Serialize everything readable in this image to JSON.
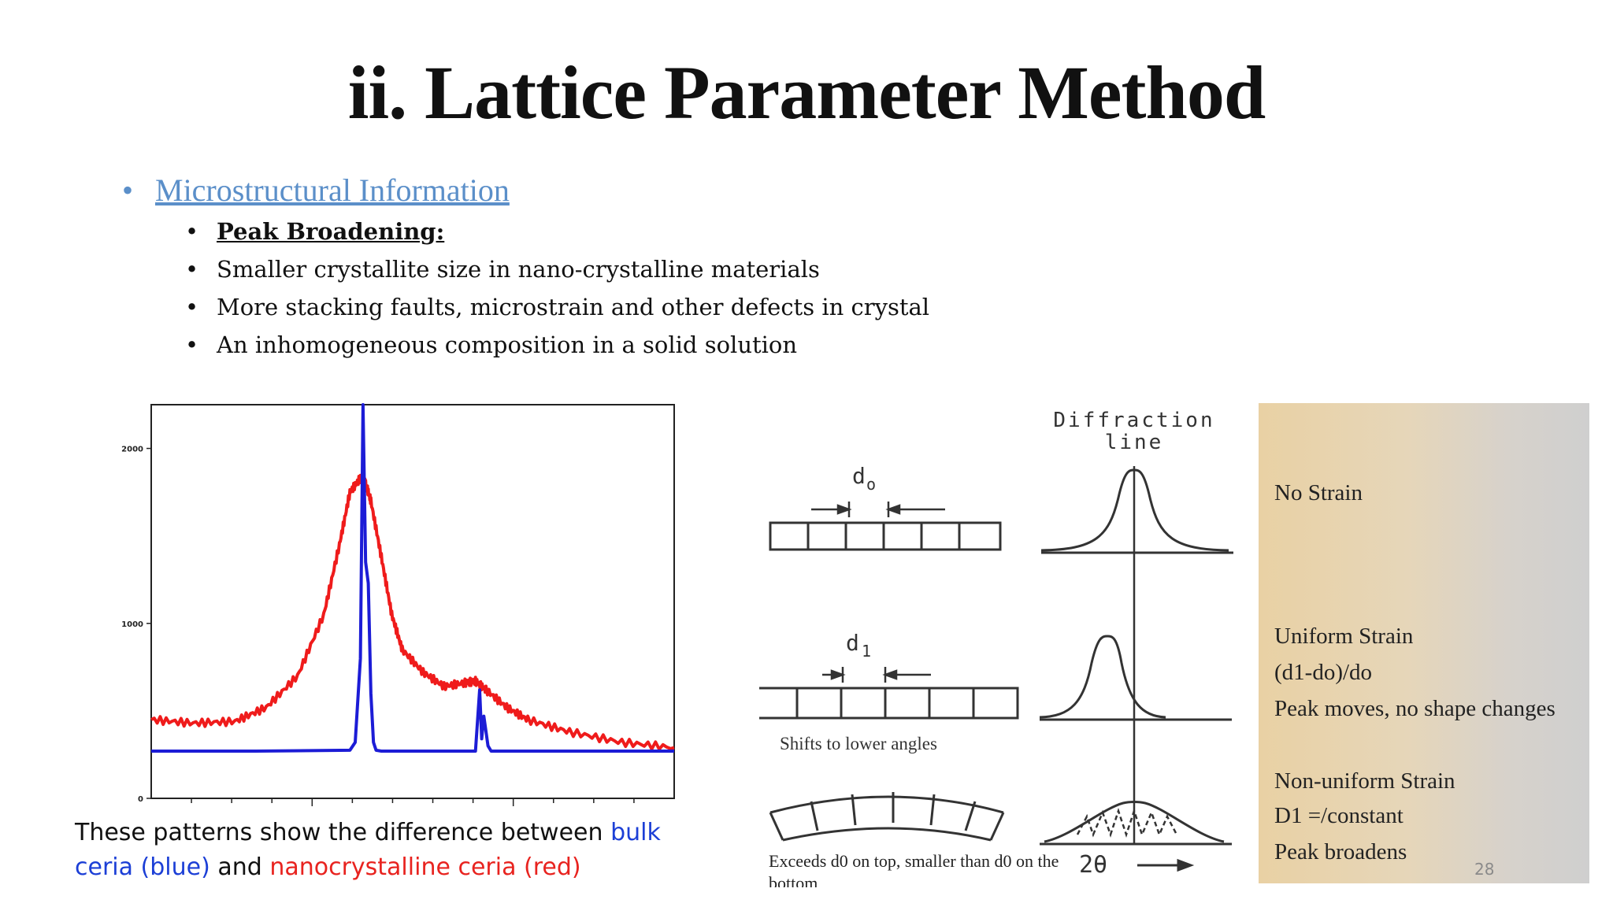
{
  "slide": {
    "title": "ii. Lattice Parameter Method",
    "number": "28"
  },
  "bullets": {
    "level1": "Microstructural Information",
    "level1_bullet": "•",
    "level2_bullet": "•",
    "heading": "Peak Broadening:",
    "items": [
      "Smaller crystallite size in nano-crystalline materials",
      "More stacking faults, microstrain and other defects in crystal",
      "An inhomogeneous composition in a solid solution"
    ]
  },
  "chart_data": {
    "type": "line",
    "title": "",
    "xlabel": "",
    "ylabel": "",
    "yticks": [
      "0",
      "1000",
      "2000"
    ],
    "ylim": [
      0,
      2250
    ],
    "xlim": [
      0,
      100
    ],
    "grid": false,
    "series": [
      {
        "color": "#1c1cd6",
        "x": [
          0,
          20,
          38,
          39,
          40,
          40.5,
          41,
          41.5,
          42,
          42.5,
          43,
          44,
          62,
          62.8,
          63.2,
          63.6,
          64.4,
          65,
          100
        ],
        "y": [
          270,
          270,
          275,
          320,
          800,
          2250,
          1350,
          1230,
          600,
          320,
          275,
          270,
          270,
          620,
          340,
          470,
          300,
          270,
          270
        ]
      },
      {
        "color": "#ef1b1b",
        "x": [
          0,
          8,
          16,
          22,
          28,
          33,
          36,
          38,
          40,
          41,
          42,
          44,
          46,
          48,
          52,
          56,
          60,
          62,
          64,
          68,
          72,
          80,
          90,
          100
        ],
        "y": [
          450,
          430,
          440,
          520,
          700,
          1050,
          1450,
          1750,
          1830,
          1800,
          1700,
          1380,
          1050,
          850,
          720,
          640,
          660,
          670,
          620,
          520,
          450,
          380,
          320,
          290
        ]
      }
    ]
  },
  "caption": {
    "line1_prefix": "These patterns show the difference between ",
    "line1_blue": "bulk",
    "line2_blue": "ceria (blue)",
    "line2_mid": " and ",
    "line2_red": "nanocrystalline ceria (red)",
    "blue_color": "#1c3fd6",
    "red_color": "#e8231f"
  },
  "diagram": {
    "header": [
      "Diffraction",
      "line"
    ],
    "d0": "d",
    "d0_sub": "o",
    "d1": "d",
    "d1_sub": "1",
    "shift_label": "Shifts to lower angles",
    "bottom_label": [
      "Exceeds d0 on top, smaller than d0 on the",
      "bottom"
    ],
    "axis_label": "2θ"
  },
  "strain": {
    "none": "No Strain",
    "uniform": "Uniform Strain",
    "uniform_formula": "(d1-do)/do",
    "uniform_note": "Peak moves, no shape changes",
    "nonuniform": "Non-uniform Strain",
    "nonuniform_formula": "D1 =/constant",
    "nonuniform_note": "Peak broadens"
  }
}
